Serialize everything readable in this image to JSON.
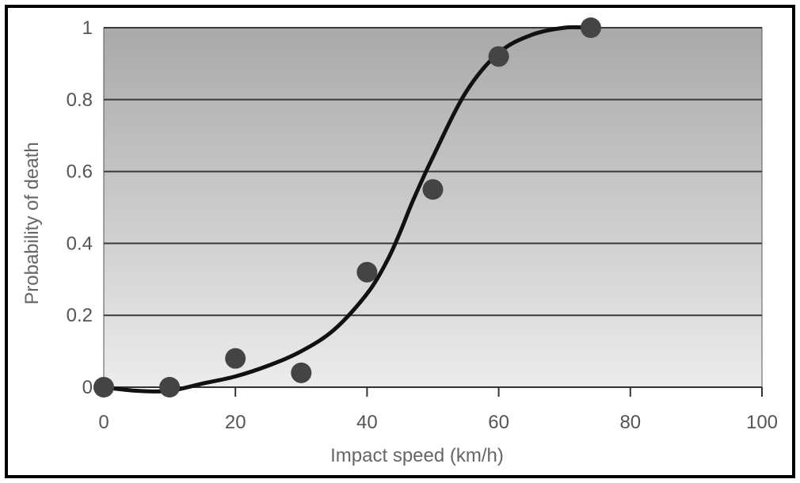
{
  "chart_data": {
    "type": "scatter",
    "title": "",
    "xlabel": "Impact speed (km/h)",
    "ylabel": "Probability of death",
    "xlim": [
      0,
      100
    ],
    "ylim": [
      0,
      1
    ],
    "x_ticks": [
      "0",
      "20",
      "40",
      "60",
      "80",
      "100"
    ],
    "y_ticks": [
      "0",
      "0.2",
      "0.4",
      "0.6",
      "0.8",
      "1"
    ],
    "grid": "horizontal",
    "legend": "none",
    "colors": {
      "points": "#444444",
      "curve": "#111111",
      "plot_bg_top": "#a9a9a9",
      "plot_bg_bottom": "#ececec",
      "gridline": "#3a3a3a"
    },
    "points": [
      {
        "x": 0,
        "y": 0.0
      },
      {
        "x": 10,
        "y": 0.0
      },
      {
        "x": 20,
        "y": 0.08
      },
      {
        "x": 30,
        "y": 0.04
      },
      {
        "x": 40,
        "y": 0.32
      },
      {
        "x": 50,
        "y": 0.55
      },
      {
        "x": 60,
        "y": 0.92
      },
      {
        "x": 74,
        "y": 1.0
      }
    ],
    "fitted_curve": [
      {
        "x": 0,
        "y": 0.0
      },
      {
        "x": 5,
        "y": -0.01
      },
      {
        "x": 10,
        "y": -0.01
      },
      {
        "x": 15,
        "y": 0.01
      },
      {
        "x": 20,
        "y": 0.03
      },
      {
        "x": 25,
        "y": 0.06
      },
      {
        "x": 30,
        "y": 0.1
      },
      {
        "x": 35,
        "y": 0.16
      },
      {
        "x": 40,
        "y": 0.26
      },
      {
        "x": 43,
        "y": 0.35
      },
      {
        "x": 45,
        "y": 0.43
      },
      {
        "x": 47,
        "y": 0.52
      },
      {
        "x": 50,
        "y": 0.64
      },
      {
        "x": 55,
        "y": 0.82
      },
      {
        "x": 60,
        "y": 0.93
      },
      {
        "x": 65,
        "y": 0.98
      },
      {
        "x": 70,
        "y": 1.0
      },
      {
        "x": 74,
        "y": 1.0
      }
    ]
  }
}
